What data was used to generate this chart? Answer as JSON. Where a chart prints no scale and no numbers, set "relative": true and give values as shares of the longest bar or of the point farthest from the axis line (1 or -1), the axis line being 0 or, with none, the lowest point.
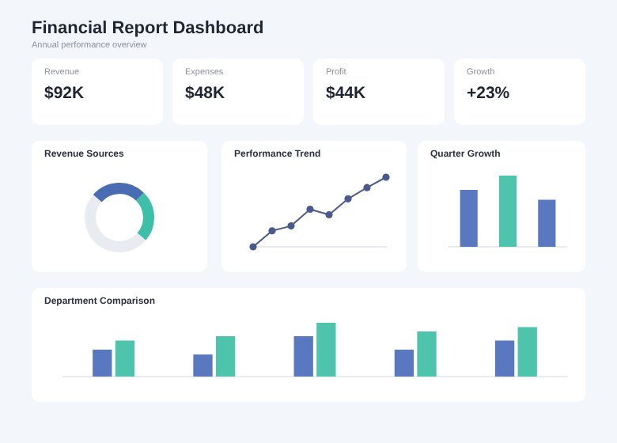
{
  "chart_data": [
    {
      "type": "other",
      "title": "Financial Report Dashboard",
      "subtitle": "Annual performance overview"
    },
    {
      "type": "other",
      "title": "Revenue",
      "annotations": [
        "$92K"
      ]
    },
    {
      "type": "other",
      "title": "Expenses",
      "annotations": [
        "$48K"
      ]
    },
    {
      "type": "other",
      "title": "Profit",
      "annotations": [
        "$44K"
      ]
    },
    {
      "type": "other",
      "title": "Growth",
      "annotations": [
        "+23%"
      ]
    },
    {
      "type": "donut",
      "title": "Revenue Sources",
      "categories": [
        null,
        null,
        null
      ],
      "values": [
        26,
        24,
        50
      ],
      "colors": [
        "#4a6cb3",
        "#3dbfa8",
        "#e8ebf0"
      ]
    },
    {
      "type": "line",
      "title": "Performance Trend",
      "relative": true,
      "marker": "circle",
      "categories": [
        null,
        null,
        null,
        null,
        null,
        null,
        null,
        null
      ],
      "series": [
        {
          "color": "#4a5a8c",
          "values": [
            0,
            0.23,
            0.3,
            0.54,
            0.46,
            0.69,
            0.85,
            1
          ]
        }
      ]
    },
    {
      "type": "bar",
      "title": "Quarter Growth",
      "relative": true,
      "categories": [
        null,
        null,
        null
      ],
      "values": [
        0.8,
        1,
        0.66
      ],
      "colors": [
        "#5a78c0",
        "#4fc4ad",
        "#5a78c0"
      ]
    },
    {
      "type": "bar",
      "title": "Department Comparison",
      "relative": true,
      "categories": [
        null,
        null,
        null,
        null,
        null
      ],
      "series": [
        {
          "color": "#5a78c0",
          "values": [
            0.5,
            0.41,
            0.75,
            0.5,
            0.67
          ]
        },
        {
          "color": "#4fc4ad",
          "values": [
            0.67,
            0.75,
            1,
            0.84,
            0.92
          ]
        }
      ]
    }
  ]
}
